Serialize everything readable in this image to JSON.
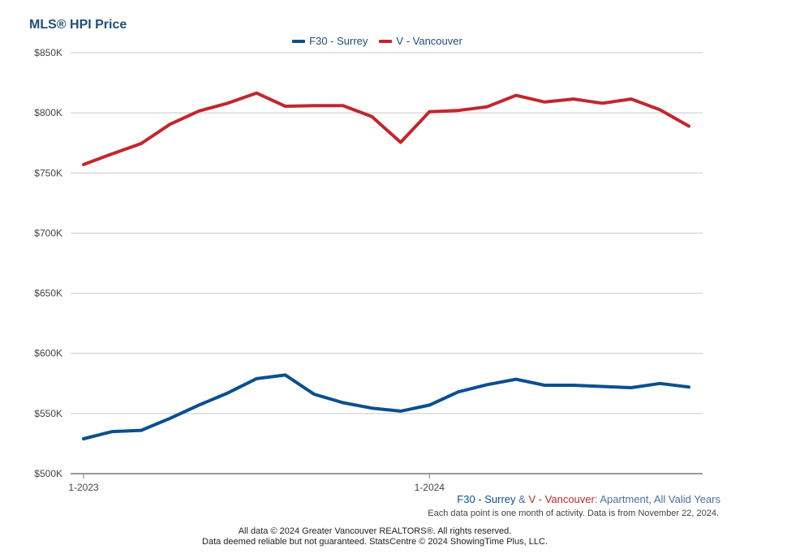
{
  "chart_data": {
    "type": "line",
    "title": "MLS® HPI Price",
    "x": [
      "1-2023",
      "2-2023",
      "3-2023",
      "4-2023",
      "5-2023",
      "6-2023",
      "7-2023",
      "8-2023",
      "9-2023",
      "10-2023",
      "11-2023",
      "12-2023",
      "1-2024",
      "2-2024",
      "3-2024",
      "4-2024",
      "5-2024",
      "6-2024",
      "7-2024",
      "8-2024",
      "9-2024",
      "10-2024"
    ],
    "x_tick_labels": [
      "1-2023",
      "1-2024"
    ],
    "x_tick_indices": [
      0,
      12
    ],
    "series": [
      {
        "name": "F30 - Surrey",
        "color": "#0b4f8f",
        "values": [
          529000,
          535000,
          536000,
          546000,
          557000,
          567000,
          579000,
          582000,
          566000,
          559000,
          554500,
          552000,
          557000,
          568000,
          574000,
          578500,
          573500,
          573500,
          572500,
          571500,
          575000,
          572000
        ]
      },
      {
        "name": "V - Vancouver",
        "color": "#c1272d",
        "values": [
          757000,
          766000,
          774500,
          790500,
          801500,
          808000,
          816500,
          805500,
          806000,
          806000,
          797000,
          775500,
          801000,
          802000,
          805000,
          814500,
          809000,
          811500,
          808000,
          811500,
          802500,
          789000
        ]
      }
    ],
    "ylim": [
      500000,
      850000
    ],
    "y_ticks": [
      500000,
      550000,
      600000,
      650000,
      700000,
      750000,
      800000,
      850000
    ],
    "y_tick_labels": [
      "$500K",
      "$550K",
      "$600K",
      "$650K",
      "$700K",
      "$750K",
      "$800K",
      "$850K"
    ],
    "xlabel": "",
    "ylabel": "",
    "grid": true,
    "legend_position": "top-center"
  },
  "subtitle": {
    "surrey": "F30 - Surrey",
    "amp": " & ",
    "vancouver": "V - Vancouver",
    "rest": ": Apartment, All Valid Years"
  },
  "note": "Each data point is one month of activity. Data is from November 22, 2024.",
  "footer": {
    "line1": "All data © 2024 Greater Vancouver REALTORS®. All rights reserved.",
    "line2": "Data deemed reliable but not guaranteed. StatsCentre © 2024 ShowingTime Plus, LLC."
  }
}
